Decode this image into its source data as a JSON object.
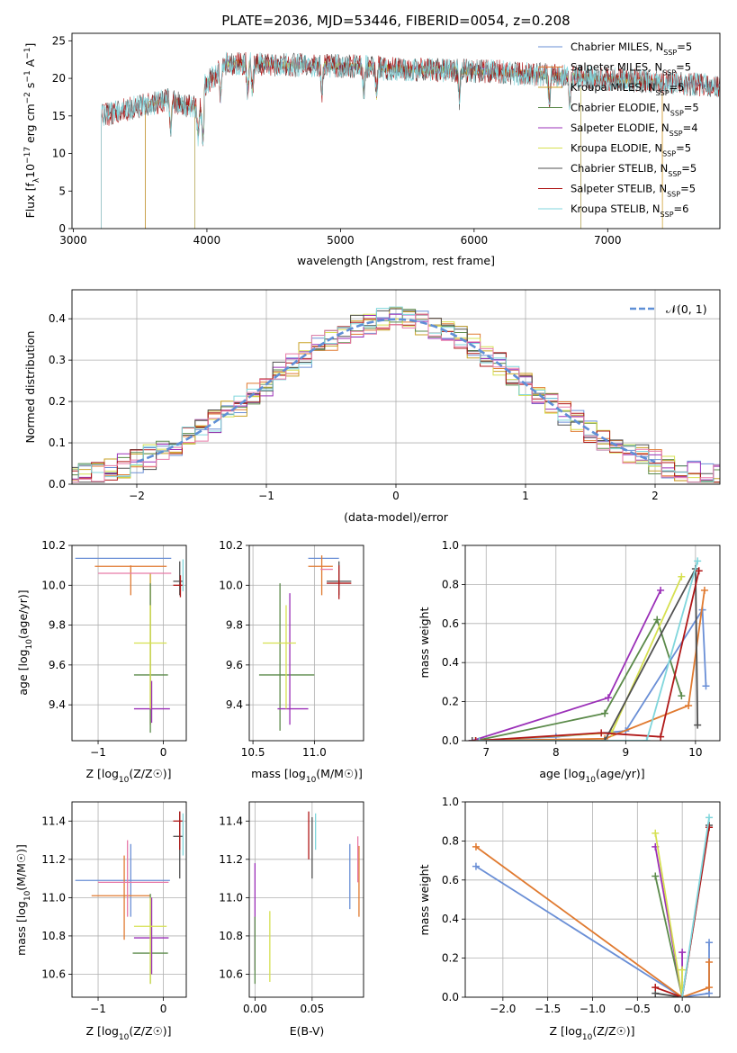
{
  "title": "PLATE=2036, MJD=53446, FIBERID=0054, z=0.208",
  "colors": {
    "Chabrier MILES": "#6a8fd6",
    "Salpeter MILES": "#e07a30",
    "Kroupa MILES": "#c9a227",
    "Chabrier ELODIE": "#5b8a4a",
    "Salpeter ELODIE": "#9b30b8",
    "Kroupa ELODIE": "#d6e050",
    "Chabrier STELIB": "#505050",
    "Salpeter STELIB": "#b01818",
    "Kroupa STELIB": "#80d6dc",
    "gauss": "#5f8fd6",
    "grid": "#b0b0b0"
  },
  "chart_data": [
    {
      "type": "line",
      "id": "spectrum",
      "title": "PLATE=2036, MJD=53446, FIBERID=0054, z=0.208",
      "xlabel": "wavelength [Angstrom, rest frame]",
      "ylabel": "Flux [f",
      "xlim": [
        2990,
        7840
      ],
      "ylim": [
        0,
        26
      ],
      "xticks": [
        3000,
        4000,
        5000,
        6000,
        7000
      ],
      "yticks": [
        0,
        5,
        10,
        15,
        20,
        25
      ],
      "grid": false,
      "legend": "top-right",
      "series": [
        {
          "name": "Chabrier MILES, N",
          "nssp": "=5",
          "start": 3540,
          "end": 7840
        },
        {
          "name": "Salpeter MILES, N",
          "nssp": "=5",
          "start": 3540,
          "end": 7410
        },
        {
          "name": "Kroupa MILES, N",
          "nssp": "=5",
          "start": 3540,
          "end": 7410
        },
        {
          "name": "Chabrier ELODIE, N",
          "nssp": "=5",
          "start": 3910,
          "end": 6800
        },
        {
          "name": "Salpeter ELODIE, N",
          "nssp": "=4",
          "start": 3910,
          "end": 6800
        },
        {
          "name": "Kroupa ELODIE, N",
          "nssp": "=5",
          "start": 3910,
          "end": 6800
        },
        {
          "name": "Chabrier STELIB, N",
          "nssp": "=5",
          "start": 3210,
          "end": 7840
        },
        {
          "name": "Salpeter STELIB, N",
          "nssp": "=5",
          "start": 3210,
          "end": 7840
        },
        {
          "name": "Kroupa STELIB, N",
          "nssp": "=6",
          "start": 3210,
          "end": 7840
        }
      ]
    },
    {
      "type": "line",
      "id": "residuals",
      "xlabel": "(data-model)/error",
      "ylabel": "Normed distribution",
      "xlim": [
        -2.5,
        2.5
      ],
      "ylim": [
        0,
        0.47
      ],
      "xticks": [
        -2,
        -1,
        0,
        1,
        2
      ],
      "yticks": [
        0.0,
        0.1,
        0.2,
        0.3,
        0.4
      ],
      "grid": true,
      "legend": "top-right",
      "gauss_label": "𝒩(0, 1)",
      "bin_width": 0.1
    },
    {
      "type": "scatter",
      "id": "age_vs_Z",
      "xlabel": "Z [log",
      "ylabel": "age  [log",
      "xlim": [
        -1.4,
        0.35
      ],
      "ylim": [
        9.22,
        10.2
      ],
      "xticks": [
        -1,
        0
      ],
      "yticks": [
        9.4,
        9.6,
        9.8,
        10.0,
        10.2
      ],
      "grid": true,
      "points": [
        {
          "model": "Chabrier MILES",
          "x": -0.6,
          "y": 10.135,
          "xlo": -1.35,
          "xhi": 0.12,
          "ylo": 10.135,
          "yhi": 10.135
        },
        {
          "model": "Salpeter MILES",
          "x": -0.5,
          "y": 10.095,
          "xlo": -1.05,
          "xhi": 0.05,
          "ylo": 9.95,
          "yhi": 10.1
        },
        {
          "model": "Kroupa MILES",
          "x": -0.2,
          "y": 10.06,
          "xlo": -0.2,
          "xhi": -0.2,
          "ylo": 9.3,
          "yhi": 10.06
        },
        {
          "model": "Chabrier ELODIE",
          "x": -0.2,
          "y": 9.55,
          "xlo": -0.45,
          "xhi": 0.07,
          "ylo": 9.26,
          "yhi": 10.01
        },
        {
          "model": "Salpeter ELODIE",
          "x": -0.18,
          "y": 9.38,
          "xlo": -0.45,
          "xhi": 0.1,
          "ylo": 9.31,
          "yhi": 9.52
        },
        {
          "model": "Kroupa ELODIE",
          "x": -0.2,
          "y": 9.71,
          "xlo": -0.45,
          "xhi": 0.05,
          "ylo": 9.38,
          "yhi": 9.9
        },
        {
          "model": "Chabrier STELIB",
          "x": 0.25,
          "y": 10.02,
          "xlo": 0.15,
          "xhi": 0.3,
          "ylo": 9.95,
          "yhi": 10.12
        },
        {
          "model": "Salpeter STELIB",
          "x": 0.26,
          "y": 10.0,
          "xlo": 0.15,
          "xhi": 0.3,
          "ylo": 9.94,
          "yhi": 10.05
        },
        {
          "model": "Kroupa STELIB",
          "x": 0.3,
          "y": 10.02,
          "xlo": 0.3,
          "xhi": 0.3,
          "ylo": 9.97,
          "yhi": 10.13
        },
        {
          "model": "pink",
          "x": -0.6,
          "y": 10.06,
          "xlo": -1.0,
          "xhi": 0.12,
          "ylo": 10.06,
          "yhi": 10.06
        }
      ]
    },
    {
      "type": "scatter",
      "id": "age_vs_mass",
      "xlabel": "mass [log",
      "xlim": [
        10.47,
        11.4
      ],
      "ylim": [
        9.22,
        10.2
      ],
      "xticks": [
        10.5,
        11.0
      ],
      "yticks": [
        9.4,
        9.6,
        9.8,
        10.0,
        10.2
      ],
      "grid": true,
      "points": [
        {
          "model": "Chabrier MILES",
          "x": 11.1,
          "y": 10.135,
          "xlo": 10.95,
          "xhi": 11.2,
          "ylo": 10.135,
          "yhi": 10.135
        },
        {
          "model": "Salpeter MILES",
          "x": 11.06,
          "y": 10.095,
          "xlo": 10.95,
          "xhi": 11.15,
          "ylo": 9.95,
          "yhi": 10.15
        },
        {
          "model": "Chabrier ELODIE",
          "x": 10.72,
          "y": 9.55,
          "xlo": 10.55,
          "xhi": 11.0,
          "ylo": 9.27,
          "yhi": 10.01
        },
        {
          "model": "Salpeter ELODIE",
          "x": 10.8,
          "y": 9.38,
          "xlo": 10.7,
          "xhi": 10.95,
          "ylo": 9.3,
          "yhi": 9.96
        },
        {
          "model": "Kroupa ELODIE",
          "x": 10.77,
          "y": 9.71,
          "xlo": 10.58,
          "xhi": 10.85,
          "ylo": 9.38,
          "yhi": 9.9
        },
        {
          "model": "Chabrier STELIB",
          "x": 11.2,
          "y": 10.02,
          "xlo": 11.1,
          "xhi": 11.3,
          "ylo": 9.95,
          "yhi": 10.12
        },
        {
          "model": "Salpeter STELIB",
          "x": 11.2,
          "y": 10.01,
          "xlo": 11.1,
          "xhi": 11.3,
          "ylo": 9.93,
          "yhi": 10.1
        },
        {
          "model": "pink",
          "x": 11.1,
          "y": 10.08,
          "xlo": 11.05,
          "xhi": 11.15,
          "ylo": 10.08,
          "yhi": 10.08
        }
      ]
    },
    {
      "type": "line",
      "id": "weight_vs_age",
      "xlabel": "age  [log",
      "ylabel": "mass weight",
      "xlim": [
        6.7,
        10.35
      ],
      "ylim": [
        0,
        1.0
      ],
      "xticks": [
        7,
        8,
        9,
        10
      ],
      "yticks": [
        0.0,
        0.2,
        0.4,
        0.6,
        0.8,
        1.0
      ],
      "grid": true,
      "series": [
        {
          "model": "Chabrier MILES",
          "x": [
            6.8,
            8.0,
            9.0,
            10.1,
            10.15
          ],
          "y": [
            0.0,
            0.02,
            0.05,
            0.67,
            0.28
          ]
        },
        {
          "model": "Salpeter MILES",
          "x": [
            6.8,
            8.7,
            9.9,
            10.13
          ],
          "y": [
            0.0,
            0.01,
            0.18,
            0.77
          ]
        },
        {
          "model": "Chabrier ELODIE",
          "x": [
            6.85,
            8.7,
            9.45,
            9.8
          ],
          "y": [
            0.0,
            0.14,
            0.62,
            0.23
          ]
        },
        {
          "model": "Salpeter ELODIE",
          "x": [
            6.8,
            8.75,
            9.5
          ],
          "y": [
            0.0,
            0.22,
            0.77
          ]
        },
        {
          "model": "Kroupa ELODIE",
          "x": [
            6.85,
            8.8,
            9.8
          ],
          "y": [
            0.0,
            0.04,
            0.84
          ]
        },
        {
          "model": "Chabrier STELIB",
          "x": [
            6.8,
            8.7,
            10.0,
            10.03
          ],
          "y": [
            0.0,
            0.0,
            0.88,
            0.08
          ]
        },
        {
          "model": "Salpeter STELIB",
          "x": [
            6.85,
            8.65,
            9.5,
            10.05
          ],
          "y": [
            0.0,
            0.04,
            0.02,
            0.87
          ]
        },
        {
          "model": "Kroupa STELIB",
          "x": [
            6.9,
            9.3,
            10.03
          ],
          "y": [
            0.0,
            0.0,
            0.92
          ]
        }
      ]
    },
    {
      "type": "scatter",
      "id": "mass_vs_Z",
      "xlabel": "Z [log",
      "ylabel": "mass [log",
      "xlim": [
        -1.4,
        0.35
      ],
      "ylim": [
        10.48,
        11.5
      ],
      "xticks": [
        -1,
        0
      ],
      "yticks": [
        10.6,
        10.8,
        11.0,
        11.2,
        11.4
      ],
      "grid": true,
      "points": [
        {
          "model": "Chabrier MILES",
          "x": -0.5,
          "y": 11.09,
          "xlo": -1.35,
          "xhi": 0.1,
          "ylo": 10.9,
          "yhi": 11.28
        },
        {
          "model": "Salpeter MILES",
          "x": -0.6,
          "y": 11.01,
          "xlo": -1.1,
          "xhi": -0.2,
          "ylo": 10.78,
          "yhi": 11.22
        },
        {
          "model": "pink",
          "x": -0.55,
          "y": 11.08,
          "xlo": -1.0,
          "xhi": 0.08,
          "ylo": 10.9,
          "yhi": 11.3
        },
        {
          "model": "Chabrier ELODIE",
          "x": -0.2,
          "y": 10.71,
          "xlo": -0.47,
          "xhi": 0.07,
          "ylo": 10.55,
          "yhi": 11.02
        },
        {
          "model": "Salpeter ELODIE",
          "x": -0.18,
          "y": 10.79,
          "xlo": -0.45,
          "xhi": 0.08,
          "ylo": 10.6,
          "yhi": 11.0
        },
        {
          "model": "Kroupa ELODIE",
          "x": -0.2,
          "y": 10.85,
          "xlo": -0.45,
          "xhi": 0.05,
          "ylo": 10.55,
          "yhi": 11.0
        },
        {
          "model": "Chabrier STELIB",
          "x": 0.25,
          "y": 11.32,
          "xlo": 0.15,
          "xhi": 0.3,
          "ylo": 11.1,
          "yhi": 11.45
        },
        {
          "model": "Salpeter STELIB",
          "x": 0.25,
          "y": 11.4,
          "xlo": 0.15,
          "xhi": 0.3,
          "ylo": 11.25,
          "yhi": 11.45
        },
        {
          "model": "Kroupa STELIB",
          "x": 0.3,
          "y": 11.38,
          "xlo": 0.3,
          "xhi": 0.3,
          "ylo": 11.22,
          "yhi": 11.44
        }
      ]
    },
    {
      "type": "scatter",
      "id": "mass_vs_EBV",
      "xlabel": "E(B-V)",
      "xlim": [
        -0.005,
        0.095
      ],
      "ylim": [
        10.48,
        11.5
      ],
      "xticks": [
        0.0,
        0.05
      ],
      "yticks": [
        10.6,
        10.8,
        11.0,
        11.2,
        11.4
      ],
      "grid": true,
      "points": [
        {
          "model": "Salpeter ELODIE",
          "x": 0.0,
          "y": 10.9,
          "ylo": 10.62,
          "yhi": 11.18
        },
        {
          "model": "Chabrier ELODIE",
          "x": 0.0,
          "y": 10.7,
          "ylo": 10.55,
          "yhi": 10.9
        },
        {
          "model": "Kroupa ELODIE",
          "x": 0.013,
          "y": 10.75,
          "ylo": 10.56,
          "yhi": 10.93
        },
        {
          "model": "Salpeter STELIB",
          "x": 0.047,
          "y": 11.32,
          "ylo": 11.2,
          "yhi": 11.45
        },
        {
          "model": "Chabrier STELIB",
          "x": 0.05,
          "y": 11.25,
          "ylo": 11.1,
          "yhi": 11.42
        },
        {
          "model": "Kroupa STELIB",
          "x": 0.053,
          "y": 11.34,
          "ylo": 11.25,
          "yhi": 11.44
        },
        {
          "model": "Chabrier MILES",
          "x": 0.083,
          "y": 11.1,
          "ylo": 10.94,
          "yhi": 11.28
        },
        {
          "model": "Salpeter MILES",
          "x": 0.091,
          "y": 11.08,
          "ylo": 10.9,
          "yhi": 11.27
        },
        {
          "model": "pink",
          "x": 0.09,
          "y": 11.18,
          "ylo": 11.08,
          "yhi": 11.32
        }
      ]
    },
    {
      "type": "line",
      "id": "weight_vs_Z",
      "xlabel": "Z [log",
      "ylabel": "mass weight",
      "xlim": [
        -2.42,
        0.42
      ],
      "ylim": [
        0,
        1.0
      ],
      "xticks": [
        -2.0,
        -1.5,
        -1.0,
        -0.5,
        0.0
      ],
      "yticks": [
        0.0,
        0.2,
        0.4,
        0.6,
        0.8,
        1.0
      ],
      "grid": true,
      "series": [
        {
          "model": "Chabrier MILES",
          "x": [
            -2.3,
            0.0,
            0.3,
            0.3
          ],
          "y": [
            0.67,
            0.0,
            0.02,
            0.28
          ]
        },
        {
          "model": "Salpeter MILES",
          "x": [
            -2.3,
            0.0,
            0.3,
            0.3
          ],
          "y": [
            0.77,
            0.0,
            0.05,
            0.18
          ]
        },
        {
          "model": "Chabrier ELODIE",
          "x": [
            -0.3,
            0.0
          ],
          "y": [
            0.62,
            0.0
          ]
        },
        {
          "model": "Salpeter ELODIE",
          "x": [
            -0.3,
            0.0,
            0.0
          ],
          "y": [
            0.77,
            0.0,
            0.23
          ]
        },
        {
          "model": "Kroupa ELODIE",
          "x": [
            -0.3,
            0.0,
            0.0
          ],
          "y": [
            0.84,
            0.0,
            0.14
          ]
        },
        {
          "model": "Chabrier STELIB",
          "x": [
            -0.3,
            0.0,
            0.3
          ],
          "y": [
            0.02,
            0.0,
            0.88
          ]
        },
        {
          "model": "Salpeter STELIB",
          "x": [
            -0.3,
            0.0,
            0.3
          ],
          "y": [
            0.05,
            0.0,
            0.87
          ]
        },
        {
          "model": "Kroupa STELIB",
          "x": [
            0.0,
            0.3
          ],
          "y": [
            0.0,
            0.92
          ]
        }
      ]
    }
  ]
}
